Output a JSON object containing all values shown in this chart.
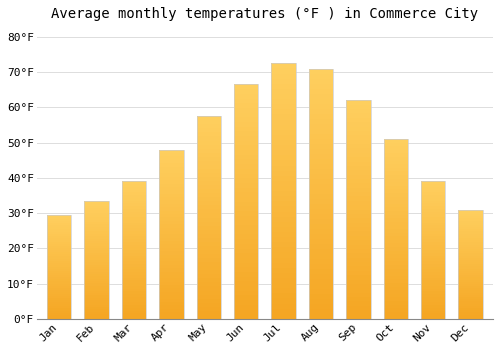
{
  "title": "Average monthly temperatures (°F ) in Commerce City",
  "months": [
    "Jan",
    "Feb",
    "Mar",
    "Apr",
    "May",
    "Jun",
    "Jul",
    "Aug",
    "Sep",
    "Oct",
    "Nov",
    "Dec"
  ],
  "values": [
    29.5,
    33.5,
    39.0,
    48.0,
    57.5,
    66.5,
    72.5,
    71.0,
    62.0,
    51.0,
    39.0,
    31.0
  ],
  "bar_color_bottom": "#F5A623",
  "bar_color_top": "#FFD060",
  "bar_edge_color": "#CCCCCC",
  "background_color": "#FFFFFF",
  "grid_color": "#DDDDDD",
  "ylim": [
    0,
    83
  ],
  "yticks": [
    0,
    10,
    20,
    30,
    40,
    50,
    60,
    70,
    80
  ],
  "title_fontsize": 10,
  "tick_fontsize": 8,
  "font_family": "monospace"
}
